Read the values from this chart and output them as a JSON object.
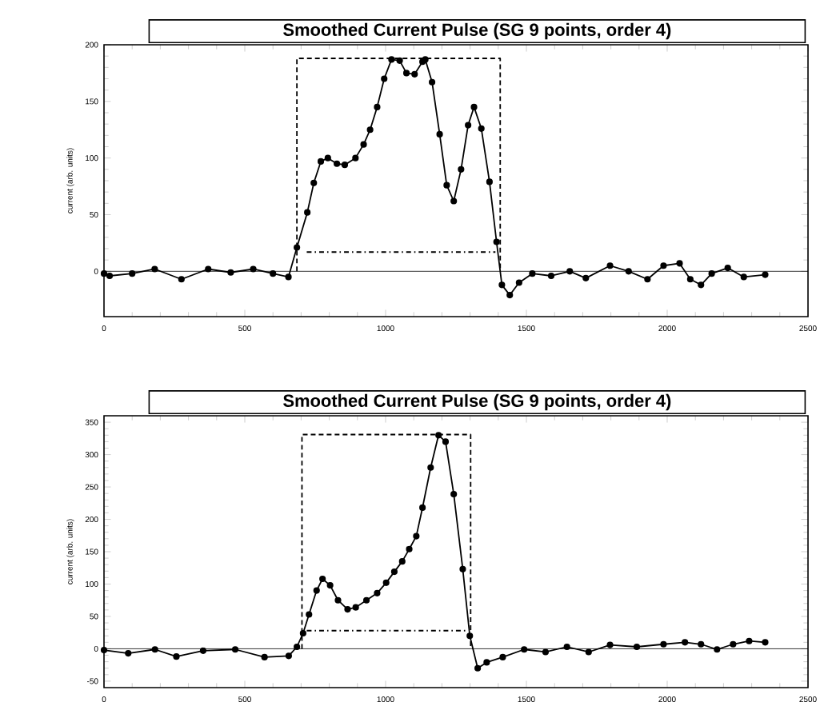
{
  "chart_data": [
    {
      "type": "line",
      "title": "Smoothed Current Pulse (SG 9 points, order 4)",
      "ylabel": "current (arb. units)",
      "xlim": [
        0,
        2500
      ],
      "ylim": [
        -40,
        200
      ],
      "xticks": [
        0,
        500,
        1000,
        1500,
        2000,
        2500
      ],
      "yticks": [
        0,
        50,
        100,
        150,
        200
      ],
      "marker": "circle",
      "ref_lines": [
        {
          "axis": "y",
          "value": 0,
          "color": "#000000"
        }
      ],
      "series": [
        {
          "color": "#000000",
          "x": [
            0,
            20,
            100,
            180,
            275,
            370,
            450,
            530,
            600,
            655,
            685,
            722,
            745,
            770,
            795,
            827,
            855,
            893,
            922,
            945,
            970,
            995,
            1021,
            1050,
            1074,
            1103,
            1131,
            1141,
            1165,
            1192,
            1217,
            1242,
            1268,
            1293,
            1314,
            1340,
            1369,
            1394,
            1413,
            1441,
            1474,
            1521,
            1588,
            1654,
            1711,
            1797,
            1863,
            1930,
            1987,
            2044,
            2082,
            2120,
            2158,
            2215,
            2272,
            2348
          ],
          "values": [
            -2,
            -4,
            -2,
            2,
            -7,
            2,
            -1,
            2,
            -2,
            -5,
            21,
            52,
            78,
            97,
            100,
            95,
            94,
            100,
            112,
            125,
            145,
            170,
            187,
            186,
            175,
            174,
            185,
            187,
            167,
            121,
            76,
            62,
            90,
            129,
            145,
            126,
            79,
            26,
            -12,
            -21,
            -10,
            -2,
            -4,
            0,
            -6,
            5,
            0,
            -7,
            5,
            7,
            -7,
            -12,
            -2,
            3,
            -5,
            -3
          ]
        },
        {
          "color": "#000000",
          "marker": "none",
          "line_style": "dashed",
          "x": [
            685,
            685,
            1407,
            1407
          ],
          "values": [
            0,
            188,
            188,
            0
          ]
        },
        {
          "color": "#000000",
          "marker": "none",
          "line_style": "dashdot",
          "x": [
            720,
            1390
          ],
          "values": [
            17,
            17
          ]
        }
      ]
    },
    {
      "type": "line",
      "title": "Smoothed Current Pulse (SG 9 points, order 4)",
      "ylabel": "current (arb. units)",
      "xlim": [
        0,
        2500
      ],
      "ylim": [
        -60,
        360
      ],
      "xticks": [
        0,
        500,
        1000,
        1500,
        2000,
        2500
      ],
      "yticks": [
        -50,
        0,
        50,
        100,
        150,
        200,
        250,
        300,
        350
      ],
      "marker": "circle",
      "ref_lines": [
        {
          "axis": "y",
          "value": 0,
          "color": "#000000"
        }
      ],
      "series": [
        {
          "color": "#000000",
          "x": [
            0,
            86,
            181,
            257,
            352,
            466,
            570,
            656,
            685,
            707,
            728,
            755,
            776,
            803,
            831,
            865,
            894,
            932,
            970,
            1002,
            1031,
            1059,
            1084,
            1109,
            1131,
            1160,
            1188,
            1213,
            1242,
            1274,
            1299,
            1327,
            1359,
            1416,
            1492,
            1568,
            1644,
            1721,
            1797,
            1892,
            1987,
            2063,
            2120,
            2177,
            2234,
            2291,
            2348
          ],
          "values": [
            -2,
            -7,
            -1,
            -12,
            -3,
            -1,
            -13,
            -11,
            3,
            24,
            53,
            90,
            108,
            98,
            75,
            61,
            64,
            75,
            86,
            102,
            119,
            135,
            154,
            174,
            218,
            280,
            330,
            320,
            239,
            123,
            20,
            -30,
            -21,
            -13,
            -1,
            -5,
            3,
            -5,
            6,
            3,
            7,
            10,
            7,
            -1,
            7,
            12,
            10
          ]
        },
        {
          "color": "#000000",
          "marker": "none",
          "line_style": "dashed",
          "x": [
            703,
            703,
            1302,
            1302
          ],
          "values": [
            0,
            331,
            331,
            0
          ]
        },
        {
          "color": "#000000",
          "marker": "none",
          "line_style": "dashdot",
          "x": [
            720,
            1290
          ],
          "values": [
            28,
            28
          ]
        }
      ]
    }
  ]
}
